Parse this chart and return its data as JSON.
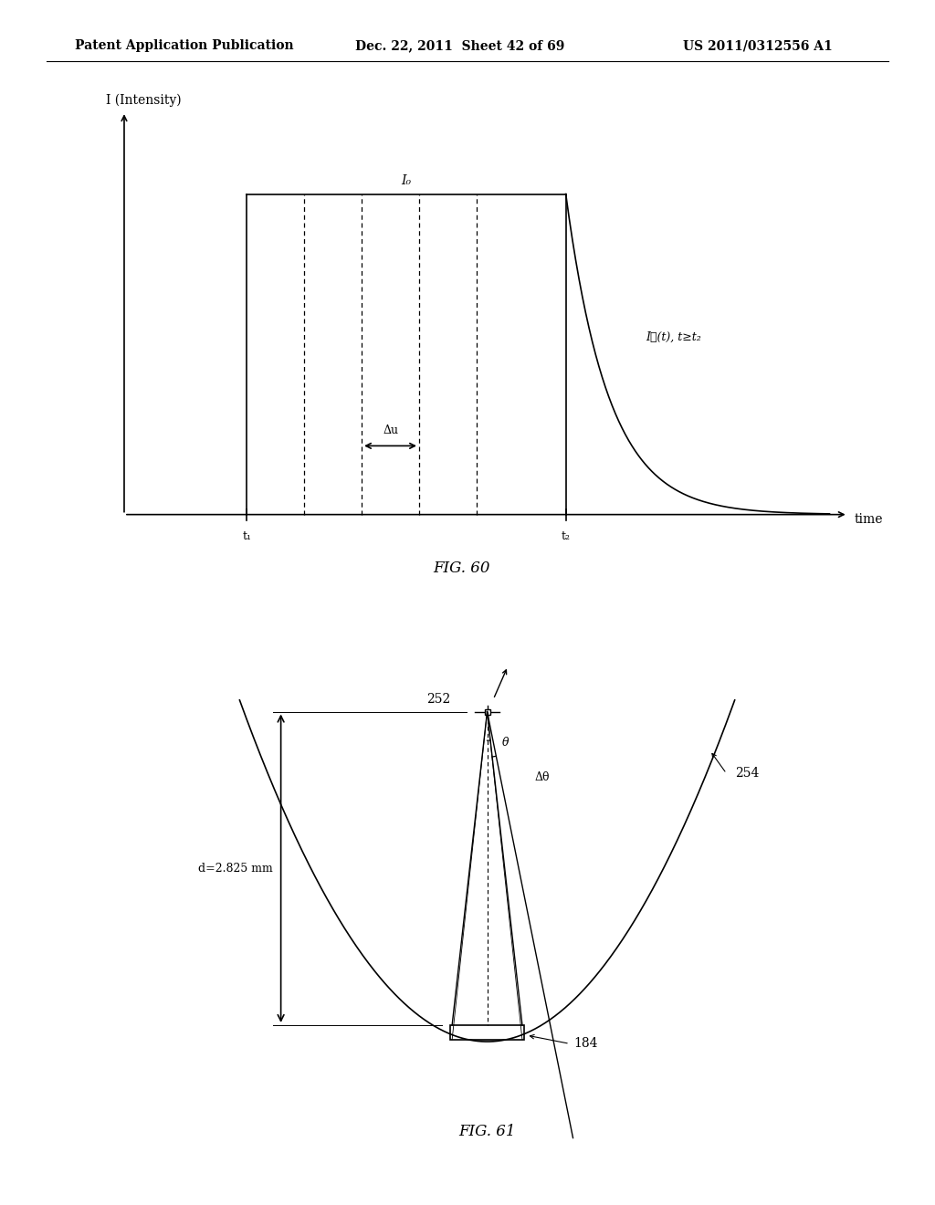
{
  "header_left": "Patent Application Publication",
  "header_mid": "Dec. 22, 2011  Sheet 42 of 69",
  "header_right": "US 2011/0312556 A1",
  "fig60_caption": "FIG. 60",
  "fig61_caption": "FIG. 61",
  "fig60_ylabel": "I (Intensity)",
  "fig60_xlabel": "time",
  "fig60_t1_label": "t₁",
  "fig60_t2_label": "t₂",
  "fig60_I0_label": "I₀",
  "fig60_If_label": "I⁦(t), t≥t₂",
  "fig60_delta_label": "Δu",
  "fig61_d_label": "d=2.825 mm",
  "fig61_theta_label": "θ",
  "fig61_dtheta_label": "Δθ",
  "fig61_252_label": "252",
  "fig61_254_label": "254",
  "fig61_184_label": "184",
  "bg_color": "#ffffff",
  "line_color": "#000000"
}
